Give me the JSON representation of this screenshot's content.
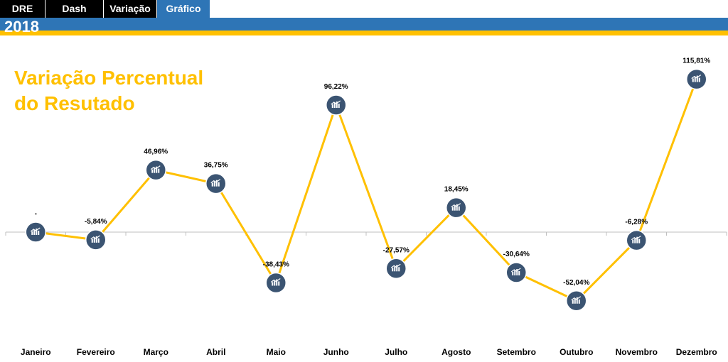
{
  "tabs": [
    {
      "label": "DRE",
      "active": false
    },
    {
      "label": "Dash",
      "active": false
    },
    {
      "label": "Variação",
      "active": false
    },
    {
      "label": "Gráfico",
      "active": true
    }
  ],
  "header": {
    "year": "2018"
  },
  "colors": {
    "tab_bar": "#000000",
    "accent_blue": "#2e75b6",
    "accent_gold": "#ffc000",
    "marker": "#3b5472",
    "line": "#ffc000"
  },
  "marker_icon": "chart-icon",
  "chart_data": {
    "type": "line",
    "title_lines": [
      "Variação Percentual",
      "do Resutado"
    ],
    "categories": [
      "Janeiro",
      "Fevereiro",
      "Março",
      "Abril",
      "Maio",
      "Junho",
      "Julho",
      "Agosto",
      "Setembro",
      "Outubro",
      "Novembro",
      "Dezembro"
    ],
    "values": [
      0,
      -5.84,
      46.96,
      36.75,
      -38.43,
      96.22,
      -27.57,
      18.45,
      -30.64,
      -52.04,
      -6.28,
      115.81
    ],
    "labels": [
      "-",
      "-5,84%",
      "46,96%",
      "36,75%",
      "-38,43%",
      "96,22%",
      "-27,57%",
      "18,45%",
      "-30,64%",
      "-52,04%",
      "-6,28%",
      "115,81%"
    ],
    "grid": false,
    "legend": "none"
  }
}
